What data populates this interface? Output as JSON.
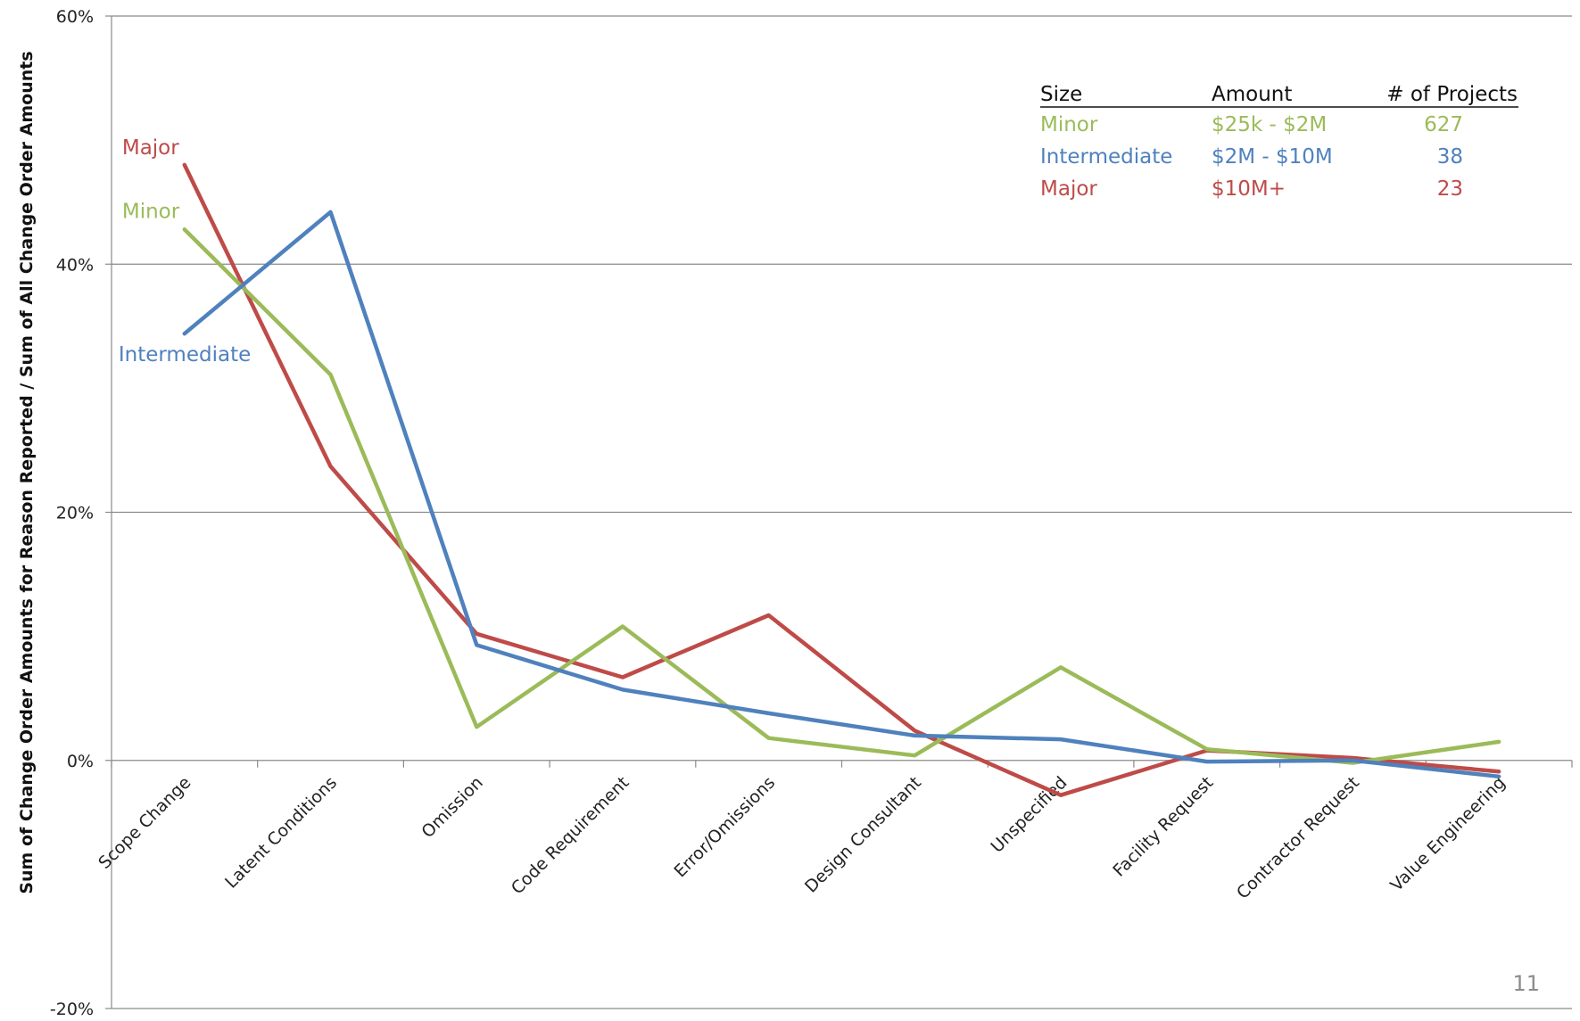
{
  "chart_data": {
    "type": "line",
    "title": "",
    "xlabel": "",
    "ylabel": "Sum of Change Order Amounts for Reason Reported / Sum of All Change Order Amounts",
    "ylim": [
      -20,
      60
    ],
    "yticks": [
      -20,
      0,
      20,
      40,
      60
    ],
    "ytick_labels": [
      "-20%",
      "0%",
      "20%",
      "40%",
      "60%"
    ],
    "grid": true,
    "categories": [
      "Scope Change",
      "Latent Conditions",
      "Omission",
      "Code Requirement",
      "Error/Omissions",
      "Design Consultant",
      "Unspecified",
      "Facility Request",
      "Contractor Request",
      "Value Engineering"
    ],
    "series": [
      {
        "name": "Major",
        "color": "#be4b48",
        "values": [
          48.0,
          23.7,
          10.2,
          6.7,
          11.7,
          2.4,
          -2.8,
          0.8,
          0.2,
          -0.9
        ]
      },
      {
        "name": "Minor",
        "color": "#9bbb59",
        "values": [
          42.8,
          31.1,
          2.7,
          10.8,
          1.8,
          0.4,
          7.5,
          0.9,
          -0.2,
          1.5
        ]
      },
      {
        "name": "Intermediate",
        "color": "#4f81bd",
        "values": [
          34.4,
          44.2,
          9.3,
          5.7,
          3.8,
          2.0,
          1.7,
          -0.1,
          0.0,
          -1.3
        ]
      }
    ],
    "legend": {
      "placement": "top-right",
      "headers": [
        "Size",
        "Amount",
        "# of Projects"
      ],
      "rows": [
        {
          "size": "Minor",
          "amount": "$25k - $2M",
          "projects": "627",
          "color": "#9bbb59"
        },
        {
          "size": "Intermediate",
          "amount": "$2M - $10M",
          "projects": "38",
          "color": "#4f81bd"
        },
        {
          "size": "Major",
          "amount": "$10M+",
          "projects": "23",
          "color": "#be4b48"
        }
      ]
    }
  },
  "page_number": "11"
}
